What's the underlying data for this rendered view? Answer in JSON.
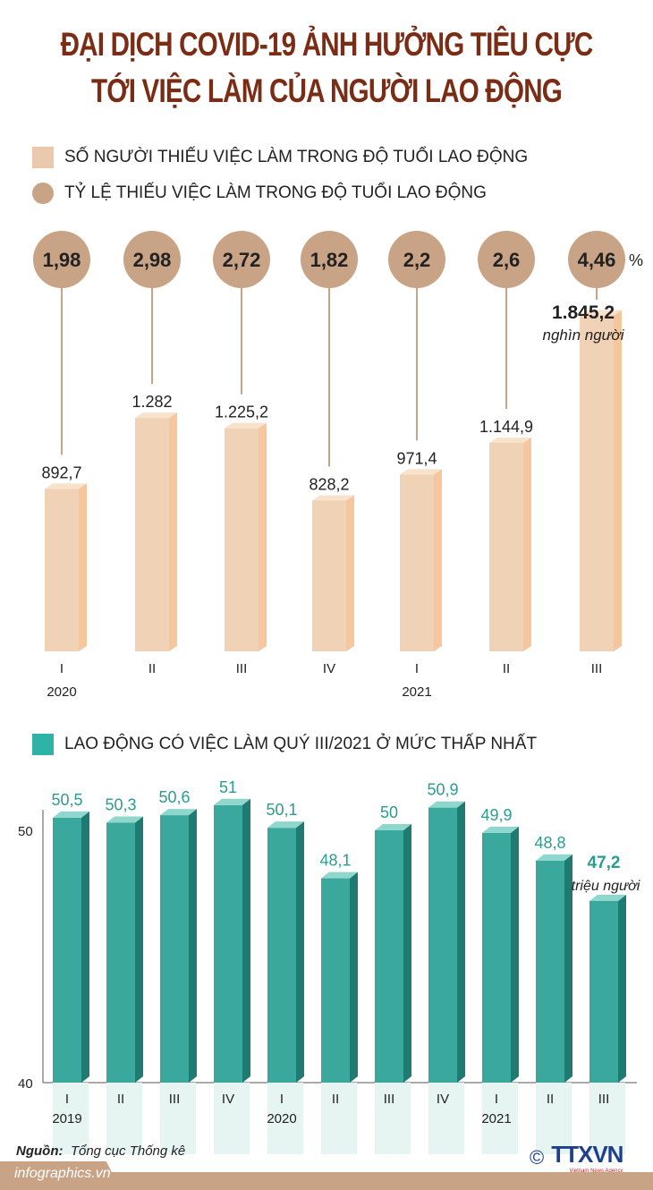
{
  "title_line1": "ĐẠI DỊCH COVID-19 ẢNH HƯỞNG TIÊU CỰC",
  "title_line2": "TỚI VIỆC LÀM CỦA NGƯỜI LAO ĐỘNG",
  "chart_data": [
    {
      "type": "bar",
      "legend": [
        {
          "label": "SỐ NGƯỜI THIẾU VIỆC LÀM TRONG ĐỘ TUỔI LAO ĐỘNG",
          "shape": "square",
          "color": "#eac9ac"
        },
        {
          "label": "TỶ LỆ THIẾU VIỆC LÀM TRONG ĐỘ TUỔI LAO ĐỘNG",
          "shape": "circle",
          "color": "#c9a386"
        }
      ],
      "categories": [
        "I",
        "II",
        "III",
        "IV",
        "I",
        "II",
        "III"
      ],
      "years": [
        {
          "index": 0,
          "label": "2020"
        },
        {
          "index": 4,
          "label": "2021"
        }
      ],
      "series": [
        {
          "values": [
            892.7,
            1282,
            1225.2,
            828.2,
            971.4,
            1144.9,
            1845.2
          ],
          "labels": [
            "892,7",
            "1.282",
            "1.225,2",
            "828,2",
            "971,4",
            "1.144,9",
            "1.845,2"
          ],
          "unit": "nghìn người",
          "color": "#eac9ac"
        },
        {
          "values": [
            1.98,
            2.98,
            2.72,
            1.82,
            2.2,
            2.6,
            4.46
          ],
          "labels": [
            "1,98",
            "2,98",
            "2,72",
            "1,82",
            "2,2",
            "2,6",
            "4,46"
          ],
          "unit": "%",
          "color": "#c9a386"
        }
      ]
    },
    {
      "type": "bar",
      "title": "LAO ĐỘNG CÓ VIỆC LÀM QUÝ III/2021 Ở MỨC THẤP NHẤT",
      "legend_color": "#2fb3a6",
      "categories": [
        "I",
        "II",
        "III",
        "IV",
        "I",
        "II",
        "III",
        "IV",
        "I",
        "II",
        "III"
      ],
      "years": [
        {
          "index": 0,
          "label": "2019"
        },
        {
          "index": 4,
          "label": "2020"
        },
        {
          "index": 8,
          "label": "2021"
        }
      ],
      "values": [
        50.5,
        50.3,
        50.6,
        51,
        50.1,
        48.1,
        50,
        50.9,
        49.9,
        48.8,
        47.2
      ],
      "labels": [
        "50,5",
        "50,3",
        "50,6",
        "51",
        "50,1",
        "48,1",
        "50",
        "50,9",
        "49,9",
        "48,8",
        "47,2"
      ],
      "unit": "triệu người",
      "ylim": [
        40,
        52
      ],
      "yticks": [
        "40",
        "50"
      ],
      "color": "#2a9d8f"
    }
  ],
  "source_label": "Nguồn:",
  "source_value": "Tổng cục Thống kê",
  "site": "infographics.vn",
  "logo_text": "TTXVN",
  "logo_sub": "Vietnam News Agency",
  "copyright": "©"
}
